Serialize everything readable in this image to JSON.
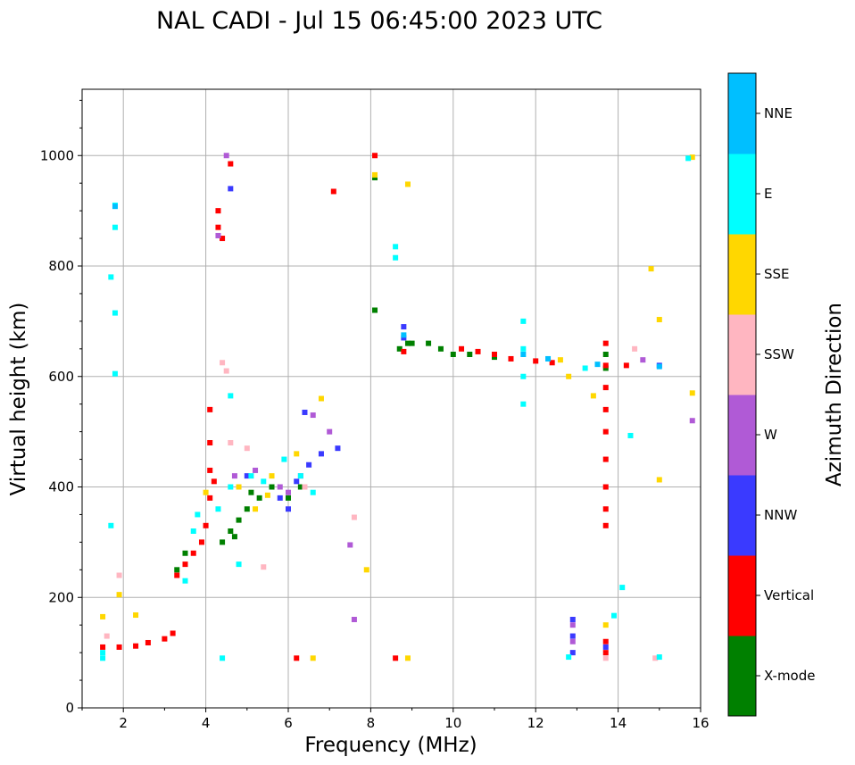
{
  "chart_data": {
    "type": "scatter",
    "title": "NAL CADI - Jul 15 06:45:00 2023 UTC",
    "xlabel": "Frequency (MHz)",
    "ylabel": "Virtual height (km)",
    "xlim": [
      1,
      16
    ],
    "ylim": [
      0,
      1120
    ],
    "xticks": [
      2,
      4,
      6,
      8,
      10,
      12,
      14,
      16
    ],
    "yticks": [
      0,
      200,
      400,
      600,
      800,
      1000
    ],
    "grid": true,
    "colorbar": {
      "label": "Azimuth Direction",
      "entries": [
        {
          "name": "X-mode",
          "color": "#008000"
        },
        {
          "name": "Vertical",
          "color": "#ff0000"
        },
        {
          "name": "NNW",
          "color": "#3a3aff"
        },
        {
          "name": "W",
          "color": "#b05ad6"
        },
        {
          "name": "SSW",
          "color": "#ffb6c1"
        },
        {
          "name": "SSE",
          "color": "#ffd700"
        },
        {
          "name": "E",
          "color": "#00ffff"
        },
        {
          "name": "NNE",
          "color": "#00bfff"
        }
      ]
    },
    "series": [
      {
        "name": "X-mode",
        "points": [
          [
            3.3,
            250
          ],
          [
            3.5,
            280
          ],
          [
            4.4,
            300
          ],
          [
            4.6,
            320
          ],
          [
            4.8,
            340
          ],
          [
            5.0,
            360
          ],
          [
            5.3,
            380
          ],
          [
            5.6,
            400
          ],
          [
            6.0,
            380
          ],
          [
            6.3,
            400
          ],
          [
            8.7,
            650
          ],
          [
            9.0,
            660
          ],
          [
            9.4,
            660
          ],
          [
            9.7,
            650
          ],
          [
            10.0,
            640
          ],
          [
            10.4,
            640
          ],
          [
            11.0,
            635
          ],
          [
            13.7,
            615
          ],
          [
            13.7,
            640
          ],
          [
            8.1,
            960
          ],
          [
            8.1,
            720
          ],
          [
            8.9,
            660
          ],
          [
            4.7,
            310
          ],
          [
            5.1,
            390
          ]
        ]
      },
      {
        "name": "Vertical",
        "points": [
          [
            1.5,
            110
          ],
          [
            1.9,
            110
          ],
          [
            2.3,
            112
          ],
          [
            2.6,
            118
          ],
          [
            3.0,
            125
          ],
          [
            3.2,
            135
          ],
          [
            3.3,
            240
          ],
          [
            3.5,
            260
          ],
          [
            3.7,
            280
          ],
          [
            3.9,
            300
          ],
          [
            4.0,
            330
          ],
          [
            4.1,
            380
          ],
          [
            4.1,
            430
          ],
          [
            4.1,
            480
          ],
          [
            4.1,
            540
          ],
          [
            4.2,
            410
          ],
          [
            4.3,
            870
          ],
          [
            4.4,
            850
          ],
          [
            4.6,
            985
          ],
          [
            4.3,
            900
          ],
          [
            6.2,
            90
          ],
          [
            8.6,
            90
          ],
          [
            8.1,
            1000
          ],
          [
            7.1,
            935
          ],
          [
            10.2,
            650
          ],
          [
            10.6,
            645
          ],
          [
            11.0,
            640
          ],
          [
            11.4,
            632
          ],
          [
            12.0,
            628
          ],
          [
            12.4,
            625
          ],
          [
            13.7,
            330
          ],
          [
            13.7,
            360
          ],
          [
            13.7,
            400
          ],
          [
            13.7,
            450
          ],
          [
            13.7,
            500
          ],
          [
            13.7,
            540
          ],
          [
            13.7,
            580
          ],
          [
            13.7,
            620
          ],
          [
            13.7,
            660
          ],
          [
            13.7,
            100
          ],
          [
            13.7,
            120
          ],
          [
            14.2,
            620
          ],
          [
            8.8,
            645
          ]
        ]
      },
      {
        "name": "NNW",
        "points": [
          [
            4.6,
            940
          ],
          [
            5.8,
            380
          ],
          [
            6.2,
            410
          ],
          [
            6.5,
            440
          ],
          [
            6.8,
            460
          ],
          [
            7.2,
            470
          ],
          [
            6.4,
            535
          ],
          [
            12.9,
            100
          ],
          [
            12.9,
            130
          ],
          [
            12.9,
            160
          ],
          [
            15.0,
            620
          ],
          [
            8.8,
            690
          ],
          [
            8.8,
            670
          ],
          [
            13.7,
            110
          ],
          [
            6.0,
            360
          ],
          [
            5.0,
            420
          ]
        ]
      },
      {
        "name": "W",
        "points": [
          [
            4.5,
            1000
          ],
          [
            4.3,
            855
          ],
          [
            5.8,
            400
          ],
          [
            6.0,
            390
          ],
          [
            6.3,
            420
          ],
          [
            6.6,
            530
          ],
          [
            7.0,
            500
          ],
          [
            7.5,
            295
          ],
          [
            7.6,
            160
          ],
          [
            12.9,
            120
          ],
          [
            12.9,
            150
          ],
          [
            14.6,
            630
          ],
          [
            15.8,
            520
          ],
          [
            4.7,
            420
          ],
          [
            5.2,
            430
          ]
        ]
      },
      {
        "name": "SSW",
        "points": [
          [
            1.6,
            130
          ],
          [
            1.9,
            240
          ],
          [
            4.4,
            625
          ],
          [
            4.5,
            610
          ],
          [
            4.6,
            480
          ],
          [
            5.4,
            255
          ],
          [
            6.4,
            400
          ],
          [
            13.7,
            90
          ],
          [
            14.4,
            650
          ],
          [
            14.9,
            90
          ],
          [
            7.6,
            345
          ],
          [
            5.0,
            470
          ]
        ]
      },
      {
        "name": "SSE",
        "points": [
          [
            1.5,
            165
          ],
          [
            1.9,
            205
          ],
          [
            2.3,
            168
          ],
          [
            4.0,
            390
          ],
          [
            4.8,
            400
          ],
          [
            5.2,
            360
          ],
          [
            5.6,
            420
          ],
          [
            6.2,
            460
          ],
          [
            6.6,
            90
          ],
          [
            6.8,
            560
          ],
          [
            7.9,
            250
          ],
          [
            8.1,
            965
          ],
          [
            8.9,
            948
          ],
          [
            8.9,
            90
          ],
          [
            12.8,
            600
          ],
          [
            13.4,
            565
          ],
          [
            14.8,
            795
          ],
          [
            15.0,
            703
          ],
          [
            15.0,
            413
          ],
          [
            15.8,
            570
          ],
          [
            15.8,
            997
          ],
          [
            13.7,
            150
          ],
          [
            12.6,
            630
          ],
          [
            5.5,
            385
          ]
        ]
      },
      {
        "name": "E",
        "points": [
          [
            1.5,
            90
          ],
          [
            1.8,
            910
          ],
          [
            1.8,
            870
          ],
          [
            1.8,
            715
          ],
          [
            1.7,
            780
          ],
          [
            1.8,
            605
          ],
          [
            1.7,
            330
          ],
          [
            1.5,
            100
          ],
          [
            3.7,
            320
          ],
          [
            3.8,
            350
          ],
          [
            4.3,
            360
          ],
          [
            4.6,
            400
          ],
          [
            4.8,
            260
          ],
          [
            5.1,
            420
          ],
          [
            5.4,
            410
          ],
          [
            5.9,
            450
          ],
          [
            6.3,
            420
          ],
          [
            6.6,
            390
          ],
          [
            4.4,
            90
          ],
          [
            4.6,
            565
          ],
          [
            8.6,
            835
          ],
          [
            8.6,
            815
          ],
          [
            11.7,
            550
          ],
          [
            11.7,
            600
          ],
          [
            11.7,
            650
          ],
          [
            11.7,
            700
          ],
          [
            12.8,
            92
          ],
          [
            13.2,
            615
          ],
          [
            13.9,
            167
          ],
          [
            14.1,
            218
          ],
          [
            14.3,
            493
          ],
          [
            15.0,
            92
          ],
          [
            15.7,
            995
          ],
          [
            3.5,
            230
          ]
        ]
      },
      {
        "name": "NNE",
        "points": [
          [
            1.8,
            908
          ],
          [
            8.8,
            675
          ],
          [
            11.7,
            640
          ],
          [
            12.3,
            632
          ],
          [
            13.5,
            622
          ],
          [
            15.0,
            618
          ]
        ]
      }
    ]
  }
}
